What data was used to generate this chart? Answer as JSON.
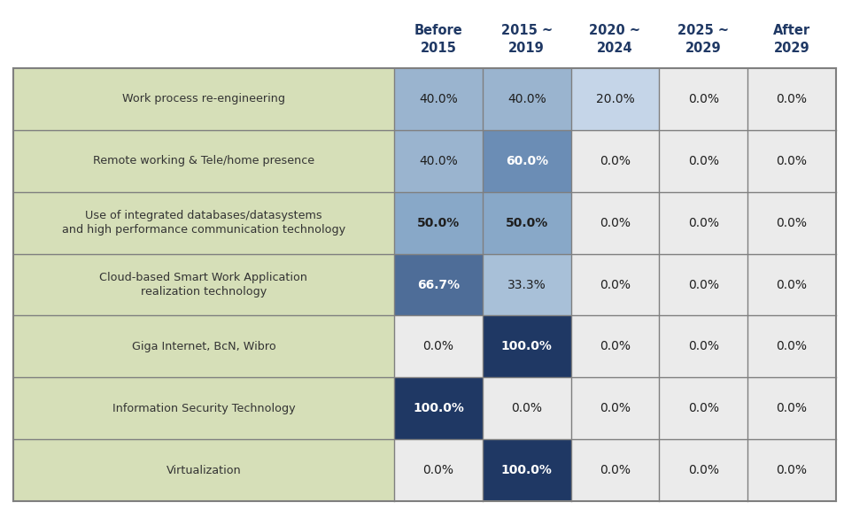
{
  "col_headers": [
    "Before\n2015",
    "2015 ~\n2019",
    "2020 ~\n2024",
    "2025 ~\n2029",
    "After\n2029"
  ],
  "row_labels": [
    "Work process re-engineering",
    "Remote working & Tele/home presence",
    "Use of integrated databases/datasystems\nand high performance communication technology",
    "Cloud-based Smart Work Application\nrealization technology",
    "Giga Internet, BcN, Wibro",
    "Information Security Technology",
    "Virtualization"
  ],
  "values": [
    [
      40.0,
      40.0,
      20.0,
      0.0,
      0.0
    ],
    [
      40.0,
      60.0,
      0.0,
      0.0,
      0.0
    ],
    [
      50.0,
      50.0,
      0.0,
      0.0,
      0.0
    ],
    [
      66.7,
      33.3,
      0.0,
      0.0,
      0.0
    ],
    [
      0.0,
      100.0,
      0.0,
      0.0,
      0.0
    ],
    [
      100.0,
      0.0,
      0.0,
      0.0,
      0.0
    ],
    [
      0.0,
      100.0,
      0.0,
      0.0,
      0.0
    ]
  ],
  "header_text_color": "#1F3864",
  "row_label_bg": "#D6DFB8",
  "row_label_text_color": "#333333",
  "color_map": {
    "0": "#EBEBEB",
    "20": "#C5D5E8",
    "33": "#A8C0D8",
    "40": "#9AB4CF",
    "50": "#88A8C8",
    "60": "#6B8DB5",
    "67": "#4E6D98",
    "100": "#1F3864"
  },
  "border_color": "#7F7F7F",
  "figure_bg": "#FFFFFF"
}
